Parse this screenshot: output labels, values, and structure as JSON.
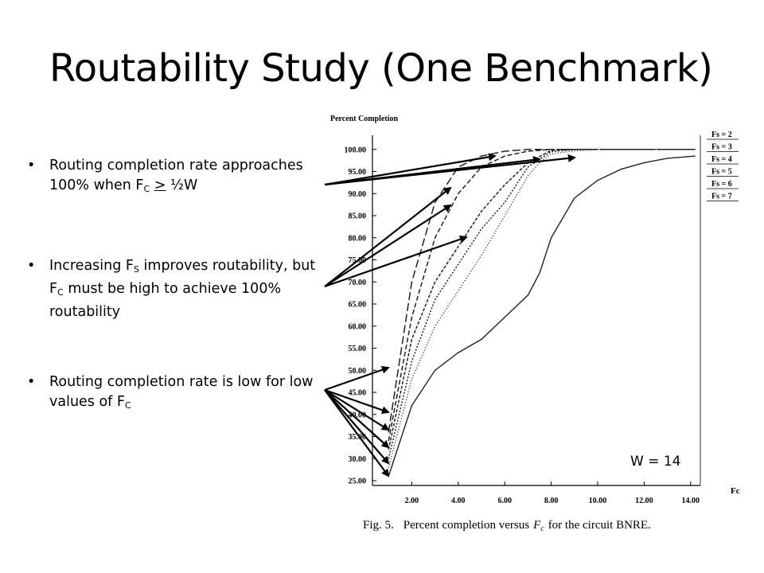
{
  "slide": {
    "title": "Routability Study (One Benchmark)",
    "bullets": [
      {
        "pre": "Routing completion rate approaches 100% when F",
        "sub1": "C",
        "mid": " ",
        "ge": ">",
        "post": " ½W"
      },
      {
        "a": "Increasing F",
        "sub_a": "S",
        "b": " improves routability, but F",
        "sub_b": "C",
        "c": " must be high to achieve 100% routability"
      },
      {
        "a": "Routing completion rate is low for low values of F",
        "sub_a": "C"
      }
    ],
    "w_label": "W = 14"
  },
  "chart_data": {
    "type": "line",
    "title": "Percent Completion",
    "xlabel": "Fc",
    "caption_fig": "Fig. 5.",
    "caption_text": "Percent completion versus",
    "caption_var": "F",
    "caption_var_sub": "c",
    "caption_tail": "for the circuit BNRE.",
    "xlim": [
      0,
      14.5
    ],
    "ylim": [
      22,
      103
    ],
    "xticks": [
      "2.00",
      "4.00",
      "6.00",
      "8.00",
      "10.00",
      "12.00",
      "14.00"
    ],
    "yticks": [
      "25.00",
      "30.00",
      "35.00",
      "40.00",
      "45.00",
      "50.00",
      "55.00",
      "60.00",
      "65.00",
      "70.00",
      "75.00",
      "80.00",
      "85.00",
      "90.00",
      "95.00",
      "100.00"
    ],
    "series": [
      {
        "name": "Fs = 2",
        "dash": "none",
        "x": [
          1,
          2,
          3,
          4,
          5,
          6,
          7,
          7.5,
          8,
          9,
          10,
          11,
          12,
          13,
          14.2
        ],
        "y": [
          26,
          42,
          50,
          54,
          57,
          62,
          67,
          72,
          80,
          89,
          93,
          95.5,
          97,
          98,
          98.5
        ]
      },
      {
        "name": "Fs = 3",
        "dash": "1,2.5",
        "x": [
          1,
          2,
          3,
          4,
          5,
          6,
          7,
          7.5,
          8,
          9,
          10,
          11,
          14.2
        ],
        "y": [
          28,
          48,
          60,
          68,
          76,
          85,
          94,
          97,
          99,
          99.7,
          100,
          100,
          100
        ]
      },
      {
        "name": "Fs = 4",
        "dash": "2,2",
        "x": [
          1,
          2,
          3,
          4,
          5,
          6,
          7,
          8,
          9,
          10,
          14.2
        ],
        "y": [
          30,
          52,
          66,
          74,
          82,
          88,
          96,
          99.5,
          100,
          100,
          100
        ]
      },
      {
        "name": "Fs = 5",
        "dash": "4,2",
        "x": [
          1,
          2,
          3,
          4,
          5,
          6,
          7,
          8,
          9,
          14.2
        ],
        "y": [
          32,
          57,
          70,
          78,
          86,
          92,
          97,
          99.8,
          100,
          100
        ]
      },
      {
        "name": "Fs = 6",
        "dash": "6,3",
        "x": [
          1,
          2,
          3,
          4,
          5,
          6,
          7,
          8,
          14.2
        ],
        "y": [
          34,
          62,
          80,
          90,
          96,
          98.5,
          99.6,
          100,
          100
        ]
      },
      {
        "name": "Fs = 7",
        "dash": "10,4",
        "x": [
          1,
          2,
          3,
          4,
          5,
          6,
          7,
          14.2
        ],
        "y": [
          36,
          70,
          88,
          96,
          98.5,
          99.6,
          100,
          100
        ]
      }
    ],
    "legend": [
      "Fs = 2",
      "Fs = 3",
      "Fs = 4",
      "Fs = 5",
      "Fs = 6",
      "Fs = 7"
    ],
    "legend_position": "right",
    "grid": false
  }
}
